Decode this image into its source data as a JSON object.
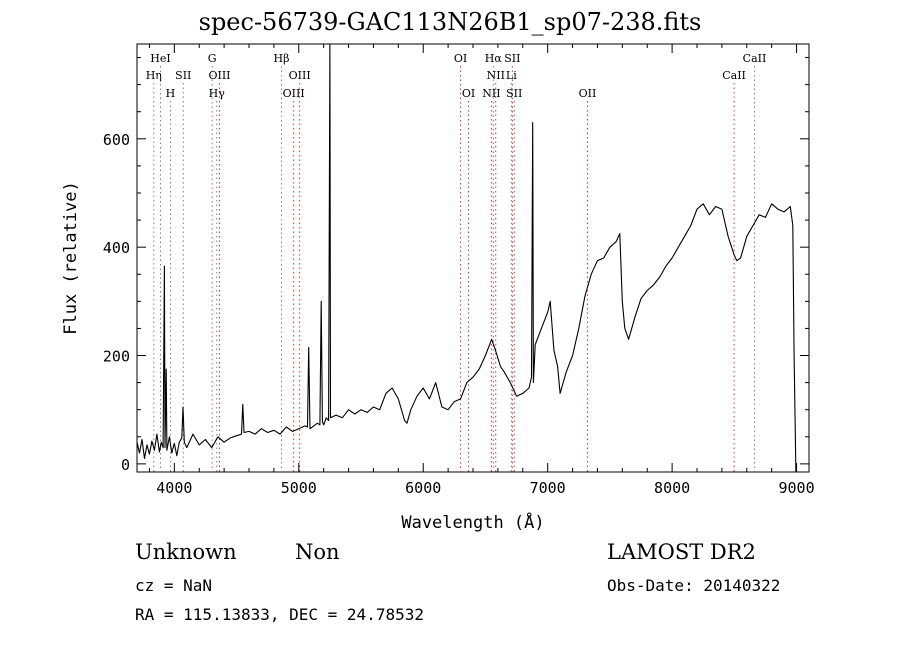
{
  "title": "spec-56739-GAC113N26B1_sp07-238.fits",
  "info": {
    "class": "Unknown",
    "subclass": "Non",
    "survey": "LAMOST DR2",
    "cz": "cz = NaN",
    "obs_date": "Obs-Date: 20140322",
    "radec": "RA = 115.13833, DEC =  24.78532"
  },
  "colors": {
    "line": "#000000",
    "emission_marker": "#d62020",
    "absorption_marker": "#777777"
  },
  "chart_data": {
    "type": "line",
    "title": "spec-56739-GAC113N26B1_sp07-238.fits",
    "xlabel": "Wavelength (Å)",
    "ylabel": "Flux (relative)",
    "xlim": [
      3700,
      9100
    ],
    "ylim": [
      -15,
      775
    ],
    "xticks": [
      4000,
      5000,
      6000,
      7000,
      8000,
      9000
    ],
    "yticks": [
      0,
      200,
      400,
      600
    ],
    "grid": false,
    "series": [
      {
        "points": [
          [
            3700,
            40
          ],
          [
            3720,
            20
          ],
          [
            3740,
            45
          ],
          [
            3760,
            10
          ],
          [
            3780,
            35
          ],
          [
            3800,
            18
          ],
          [
            3820,
            42
          ],
          [
            3840,
            25
          ],
          [
            3860,
            55
          ],
          [
            3880,
            22
          ],
          [
            3895,
            40
          ],
          [
            3910,
            30
          ],
          [
            3920,
            365
          ],
          [
            3925,
            30
          ],
          [
            3935,
            175
          ],
          [
            3940,
            25
          ],
          [
            3960,
            50
          ],
          [
            3980,
            20
          ],
          [
            4000,
            38
          ],
          [
            4020,
            15
          ],
          [
            4040,
            40
          ],
          [
            4060,
            48
          ],
          [
            4070,
            105
          ],
          [
            4080,
            40
          ],
          [
            4100,
            30
          ],
          [
            4150,
            55
          ],
          [
            4200,
            35
          ],
          [
            4250,
            45
          ],
          [
            4300,
            30
          ],
          [
            4350,
            50
          ],
          [
            4400,
            40
          ],
          [
            4450,
            48
          ],
          [
            4500,
            52
          ],
          [
            4540,
            55
          ],
          [
            4550,
            110
          ],
          [
            4560,
            58
          ],
          [
            4600,
            60
          ],
          [
            4650,
            55
          ],
          [
            4700,
            65
          ],
          [
            4750,
            58
          ],
          [
            4800,
            62
          ],
          [
            4850,
            55
          ],
          [
            4900,
            68
          ],
          [
            4950,
            60
          ],
          [
            5000,
            65
          ],
          [
            5050,
            70
          ],
          [
            5070,
            68
          ],
          [
            5080,
            215
          ],
          [
            5090,
            65
          ],
          [
            5150,
            75
          ],
          [
            5170,
            72
          ],
          [
            5180,
            300
          ],
          [
            5190,
            78
          ],
          [
            5200,
            72
          ],
          [
            5220,
            85
          ],
          [
            5240,
            80
          ],
          [
            5250,
            775
          ],
          [
            5255,
            85
          ],
          [
            5300,
            90
          ],
          [
            5350,
            85
          ],
          [
            5400,
            100
          ],
          [
            5450,
            92
          ],
          [
            5500,
            100
          ],
          [
            5550,
            95
          ],
          [
            5600,
            105
          ],
          [
            5650,
            100
          ],
          [
            5700,
            130
          ],
          [
            5750,
            140
          ],
          [
            5800,
            120
          ],
          [
            5850,
            80
          ],
          [
            5870,
            75
          ],
          [
            5900,
            100
          ],
          [
            5950,
            125
          ],
          [
            6000,
            140
          ],
          [
            6050,
            120
          ],
          [
            6100,
            150
          ],
          [
            6150,
            105
          ],
          [
            6200,
            100
          ],
          [
            6250,
            115
          ],
          [
            6300,
            120
          ],
          [
            6350,
            150
          ],
          [
            6400,
            160
          ],
          [
            6450,
            175
          ],
          [
            6500,
            200
          ],
          [
            6550,
            230
          ],
          [
            6580,
            210
          ],
          [
            6620,
            180
          ],
          [
            6650,
            170
          ],
          [
            6700,
            150
          ],
          [
            6750,
            125
          ],
          [
            6800,
            130
          ],
          [
            6850,
            140
          ],
          [
            6870,
            160
          ],
          [
            6880,
            630
          ],
          [
            6885,
            150
          ],
          [
            6900,
            220
          ],
          [
            6950,
            250
          ],
          [
            7000,
            280
          ],
          [
            7020,
            300
          ],
          [
            7050,
            210
          ],
          [
            7080,
            180
          ],
          [
            7100,
            130
          ],
          [
            7150,
            170
          ],
          [
            7200,
            200
          ],
          [
            7250,
            250
          ],
          [
            7300,
            310
          ],
          [
            7350,
            350
          ],
          [
            7400,
            375
          ],
          [
            7450,
            380
          ],
          [
            7500,
            400
          ],
          [
            7550,
            410
          ],
          [
            7580,
            425
          ],
          [
            7600,
            300
          ],
          [
            7620,
            250
          ],
          [
            7650,
            230
          ],
          [
            7700,
            270
          ],
          [
            7750,
            305
          ],
          [
            7800,
            320
          ],
          [
            7850,
            330
          ],
          [
            7900,
            345
          ],
          [
            7950,
            365
          ],
          [
            8000,
            380
          ],
          [
            8050,
            400
          ],
          [
            8100,
            420
          ],
          [
            8150,
            440
          ],
          [
            8200,
            470
          ],
          [
            8250,
            480
          ],
          [
            8300,
            460
          ],
          [
            8350,
            475
          ],
          [
            8400,
            470
          ],
          [
            8450,
            420
          ],
          [
            8500,
            385
          ],
          [
            8520,
            375
          ],
          [
            8550,
            380
          ],
          [
            8600,
            420
          ],
          [
            8650,
            440
          ],
          [
            8700,
            460
          ],
          [
            8750,
            455
          ],
          [
            8800,
            480
          ],
          [
            8850,
            470
          ],
          [
            8900,
            465
          ],
          [
            8950,
            475
          ],
          [
            8970,
            440
          ],
          [
            8980,
            200
          ],
          [
            8995,
            -15
          ]
        ]
      }
    ],
    "annotations": [
      {
        "label": "HeI",
        "x": 3889,
        "row": 0,
        "kind": "absorption"
      },
      {
        "label": "Hη",
        "x": 3835,
        "row": 1,
        "kind": "absorption"
      },
      {
        "label": "SII",
        "x": 4072,
        "row": 1,
        "kind": "absorption"
      },
      {
        "label": "H",
        "x": 3969,
        "row": 2,
        "kind": "absorption"
      },
      {
        "label": "G",
        "x": 4304,
        "row": 0,
        "kind": "absorption"
      },
      {
        "label": "OIII",
        "x": 4363,
        "row": 1,
        "kind": "emission"
      },
      {
        "label": "Hγ",
        "x": 4341,
        "row": 2,
        "kind": "absorption"
      },
      {
        "label": "Hβ",
        "x": 4861,
        "row": 0,
        "kind": "absorption"
      },
      {
        "label": "OIII",
        "x": 5007,
        "row": 1,
        "kind": "emission"
      },
      {
        "label": "OIII",
        "x": 4959,
        "row": 2,
        "kind": "emission"
      },
      {
        "label": "OI",
        "x": 6300,
        "row": 0,
        "kind": "emission"
      },
      {
        "label": "OI",
        "x": 6364,
        "row": 2,
        "kind": "emission"
      },
      {
        "label": "Hα",
        "x": 6563,
        "row": 0,
        "kind": "absorption"
      },
      {
        "label": "SII",
        "x": 6716,
        "row": 0,
        "kind": "emission"
      },
      {
        "label": "NII",
        "x": 6583,
        "row": 1,
        "kind": "emission"
      },
      {
        "label": "Li",
        "x": 6708,
        "row": 1,
        "kind": "absorption"
      },
      {
        "label": "NII",
        "x": 6548,
        "row": 2,
        "kind": "emission"
      },
      {
        "label": "SII",
        "x": 6731,
        "row": 2,
        "kind": "emission"
      },
      {
        "label": "OII",
        "x": 7320,
        "row": 2,
        "kind": "emission"
      },
      {
        "label": "CaII",
        "x": 8662,
        "row": 0,
        "kind": "absorption"
      },
      {
        "label": "CaII",
        "x": 8498,
        "row": 1,
        "kind": "emission"
      }
    ]
  }
}
